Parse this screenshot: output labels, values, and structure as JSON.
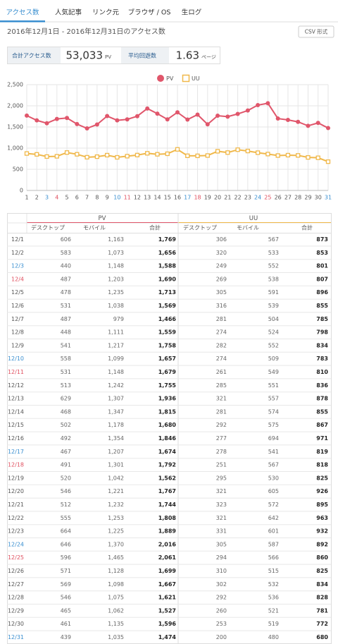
{
  "tabs": [
    "アクセス数",
    "人気記事",
    "リンク元",
    "ブラウザ / OS",
    "生ログ"
  ],
  "header": {
    "period": "2016年12月1日 - 2016年12月31日のアクセス数",
    "csv_button": "CSV 形式"
  },
  "summary": {
    "total_label": "合計アクセス数",
    "total_value": "53,033",
    "total_unit": "PV",
    "avg_label": "平均回遊数",
    "avg_value": "1.63",
    "avg_unit": "ページ"
  },
  "chart_data": {
    "type": "line",
    "categories": [
      "1",
      "2",
      "3",
      "4",
      "5",
      "6",
      "7",
      "8",
      "9",
      "10",
      "11",
      "12",
      "13",
      "14",
      "15",
      "16",
      "17",
      "18",
      "19",
      "20",
      "21",
      "22",
      "23",
      "24",
      "25",
      "26",
      "27",
      "28",
      "29",
      "30",
      "31"
    ],
    "category_colors": [
      "#555",
      "#555",
      "#3a8fd0",
      "#e05060",
      "#555",
      "#555",
      "#555",
      "#555",
      "#555",
      "#3a8fd0",
      "#e05060",
      "#555",
      "#555",
      "#555",
      "#555",
      "#555",
      "#3a8fd0",
      "#e05060",
      "#555",
      "#555",
      "#555",
      "#555",
      "#555",
      "#3a8fd0",
      "#e05060",
      "#555",
      "#555",
      "#555",
      "#555",
      "#555",
      "#3a8fd0"
    ],
    "series": [
      {
        "name": "PV",
        "color": "#e0566b",
        "marker": "circle",
        "values": [
          1769,
          1656,
          1588,
          1690,
          1713,
          1569,
          1466,
          1559,
          1758,
          1657,
          1679,
          1755,
          1936,
          1815,
          1680,
          1846,
          1674,
          1792,
          1562,
          1767,
          1744,
          1808,
          1889,
          2016,
          2061,
          1699,
          1667,
          1621,
          1527,
          1596,
          1474
        ]
      },
      {
        "name": "UU",
        "color": "#f0b84a",
        "marker": "square",
        "values": [
          873,
          853,
          801,
          807,
          896,
          855,
          785,
          798,
          834,
          783,
          810,
          836,
          878,
          855,
          867,
          971,
          819,
          818,
          825,
          926,
          895,
          963,
          932,
          892,
          860,
          825,
          834,
          828,
          781,
          772,
          680
        ]
      }
    ],
    "ylim": [
      0,
      2500
    ],
    "yticks": [
      0,
      {
        "value": 500,
        "label": "500"
      },
      {
        "value": 1000,
        "label": "1,000"
      },
      {
        "value": 1500,
        "label": "1,500"
      },
      {
        "value": 2000,
        "label": "2,000"
      },
      {
        "value": 2500,
        "label": "2,500"
      }
    ],
    "grid": true
  },
  "table": {
    "groups": [
      "PV",
      "UU"
    ],
    "columns": [
      "デスクトップ",
      "モバイル",
      "合計",
      "デスクトップ",
      "モバイル",
      "合計"
    ],
    "rows": [
      [
        "12/1",
        "606",
        "1,163",
        "1,769",
        "306",
        "567",
        "873"
      ],
      [
        "12/2",
        "583",
        "1,073",
        "1,656",
        "320",
        "533",
        "853"
      ],
      [
        "12/3",
        "440",
        "1,148",
        "1,588",
        "249",
        "552",
        "801"
      ],
      [
        "12/4",
        "487",
        "1,203",
        "1,690",
        "269",
        "538",
        "807"
      ],
      [
        "12/5",
        "478",
        "1,235",
        "1,713",
        "305",
        "591",
        "896"
      ],
      [
        "12/6",
        "531",
        "1,038",
        "1,569",
        "316",
        "539",
        "855"
      ],
      [
        "12/7",
        "487",
        "979",
        "1,466",
        "281",
        "504",
        "785"
      ],
      [
        "12/8",
        "448",
        "1,111",
        "1,559",
        "274",
        "524",
        "798"
      ],
      [
        "12/9",
        "541",
        "1,217",
        "1,758",
        "282",
        "552",
        "834"
      ],
      [
        "12/10",
        "558",
        "1,099",
        "1,657",
        "274",
        "509",
        "783"
      ],
      [
        "12/11",
        "531",
        "1,148",
        "1,679",
        "261",
        "549",
        "810"
      ],
      [
        "12/12",
        "513",
        "1,242",
        "1,755",
        "285",
        "551",
        "836"
      ],
      [
        "12/13",
        "629",
        "1,307",
        "1,936",
        "321",
        "557",
        "878"
      ],
      [
        "12/14",
        "468",
        "1,347",
        "1,815",
        "281",
        "574",
        "855"
      ],
      [
        "12/15",
        "502",
        "1,178",
        "1,680",
        "292",
        "575",
        "867"
      ],
      [
        "12/16",
        "492",
        "1,354",
        "1,846",
        "277",
        "694",
        "971"
      ],
      [
        "12/17",
        "467",
        "1,207",
        "1,674",
        "278",
        "541",
        "819"
      ],
      [
        "12/18",
        "491",
        "1,301",
        "1,792",
        "251",
        "567",
        "818"
      ],
      [
        "12/19",
        "520",
        "1,042",
        "1,562",
        "295",
        "530",
        "825"
      ],
      [
        "12/20",
        "546",
        "1,221",
        "1,767",
        "321",
        "605",
        "926"
      ],
      [
        "12/21",
        "512",
        "1,232",
        "1,744",
        "323",
        "572",
        "895"
      ],
      [
        "12/22",
        "555",
        "1,253",
        "1,808",
        "321",
        "642",
        "963"
      ],
      [
        "12/23",
        "664",
        "1,225",
        "1,889",
        "331",
        "601",
        "932"
      ],
      [
        "12/24",
        "646",
        "1,370",
        "2,016",
        "305",
        "587",
        "892"
      ],
      [
        "12/25",
        "596",
        "1,465",
        "2,061",
        "294",
        "566",
        "860"
      ],
      [
        "12/26",
        "571",
        "1,128",
        "1,699",
        "310",
        "515",
        "825"
      ],
      [
        "12/27",
        "569",
        "1,098",
        "1,667",
        "302",
        "532",
        "834"
      ],
      [
        "12/28",
        "546",
        "1,075",
        "1,621",
        "292",
        "536",
        "828"
      ],
      [
        "12/29",
        "465",
        "1,062",
        "1,527",
        "260",
        "521",
        "781"
      ],
      [
        "12/30",
        "461",
        "1,135",
        "1,596",
        "253",
        "519",
        "772"
      ],
      [
        "12/31",
        "439",
        "1,035",
        "1,474",
        "200",
        "480",
        "680"
      ]
    ]
  }
}
